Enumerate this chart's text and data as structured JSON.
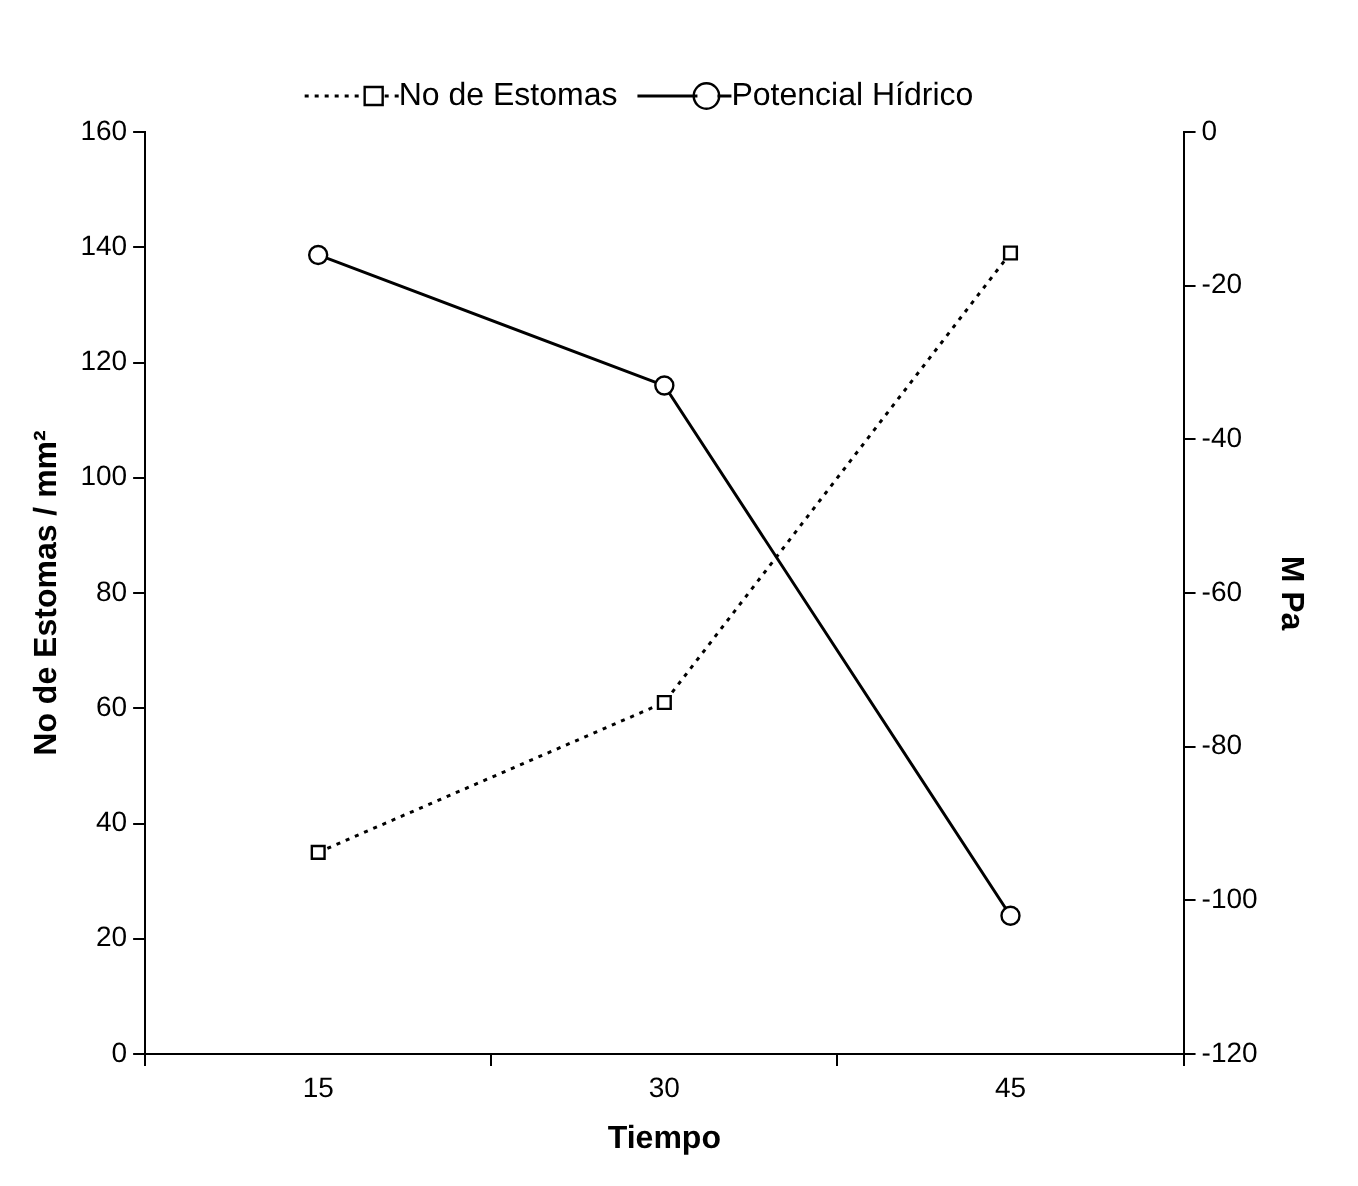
{
  "chart_data": {
    "type": "line",
    "xlabel": "Tiempo",
    "ylabel": "No de Estomas / mm²",
    "y2label": "M Pa",
    "categories": [
      "15",
      "30",
      "45"
    ],
    "series": [
      {
        "name": "No de Estomas",
        "color": "#000000",
        "values": [
          35,
          61,
          139
        ],
        "marker": "square",
        "line_style": "dotted"
      },
      {
        "name": "Potencial Hídrico",
        "color": "#000000",
        "values": [
          -16,
          -33,
          -102
        ],
        "marker": "circle",
        "line_style": "solid",
        "axis": "y2"
      }
    ],
    "ylim": [
      0,
      160
    ],
    "yticks": [
      0,
      20,
      40,
      60,
      80,
      100,
      120,
      140,
      160
    ],
    "y2lim": [
      -120,
      0
    ],
    "y2ticks": [
      -120,
      -100,
      -80,
      -60,
      -40,
      -20,
      0
    ],
    "grid": false,
    "legend": "top"
  }
}
